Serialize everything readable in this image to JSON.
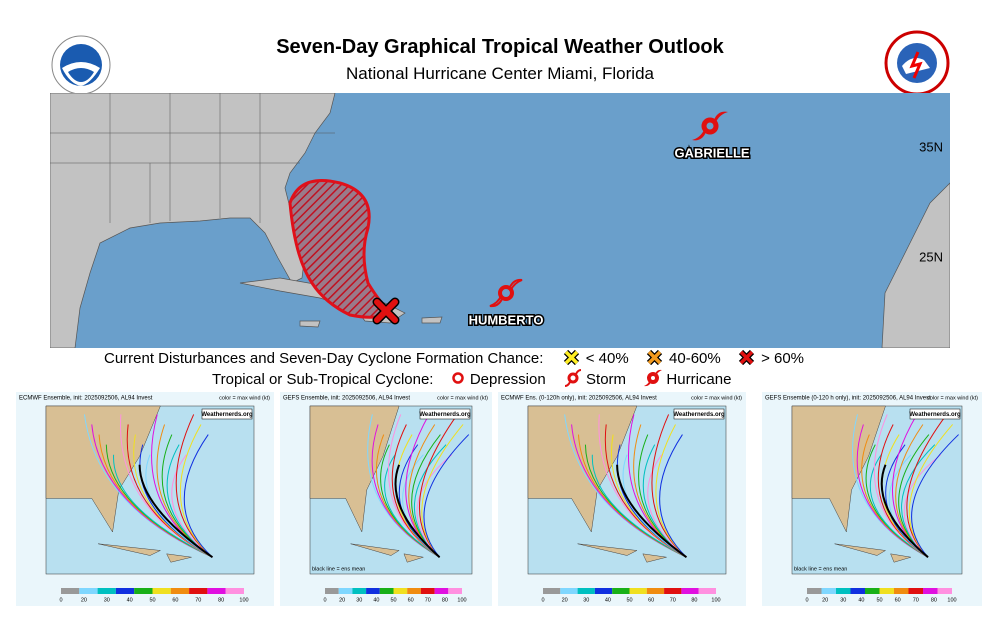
{
  "header": {
    "title": "Seven-Day Graphical Tropical Weather Outlook",
    "subtitle": "National Hurricane Center  Miami, Florida"
  },
  "map": {
    "storms": [
      {
        "name": "GABRIELLE"
      },
      {
        "name": "HUMBERTO"
      }
    ],
    "lat_labels": [
      "35N",
      "25N"
    ]
  },
  "legend": {
    "formation_title": "Current Disturbances and Seven-Day Cyclone Formation Chance:",
    "formation": [
      "< 40%",
      "40-60%",
      "> 60%"
    ],
    "cyclone_title": "Tropical or Sub-Tropical Cyclone:",
    "cyclone": [
      "Depression",
      "Storm",
      "Hurricane"
    ]
  },
  "panels": [
    {
      "title": "ECMWF Ensemble, init: 2025092506, AL94 Invest",
      "badge": "Weathernerds.org",
      "note": "color = max wind (kt)"
    },
    {
      "title": "GEFS Ensemble, init: 2025092506, AL94 Invest",
      "badge": "Weathernerds.org",
      "note": "color = max wind (kt)",
      "footer": "black line = ens mean"
    },
    {
      "title": "ECMWF Ens. (0-120h only), init: 2025092506, AL94 Invest",
      "badge": "Weathernerds.org",
      "note": "color = max wind (kt)"
    },
    {
      "title": "GEFS Ensemble (0-120 h only), init: 2025092506, AL94 Invest",
      "badge": "Weathernerds.org",
      "note": "color = max wind (kt)",
      "footer": "black line = ens mean"
    }
  ],
  "colorbar_ticks": [
    "0",
    "20",
    "30",
    "40",
    "50",
    "60",
    "70",
    "80",
    "100"
  ]
}
